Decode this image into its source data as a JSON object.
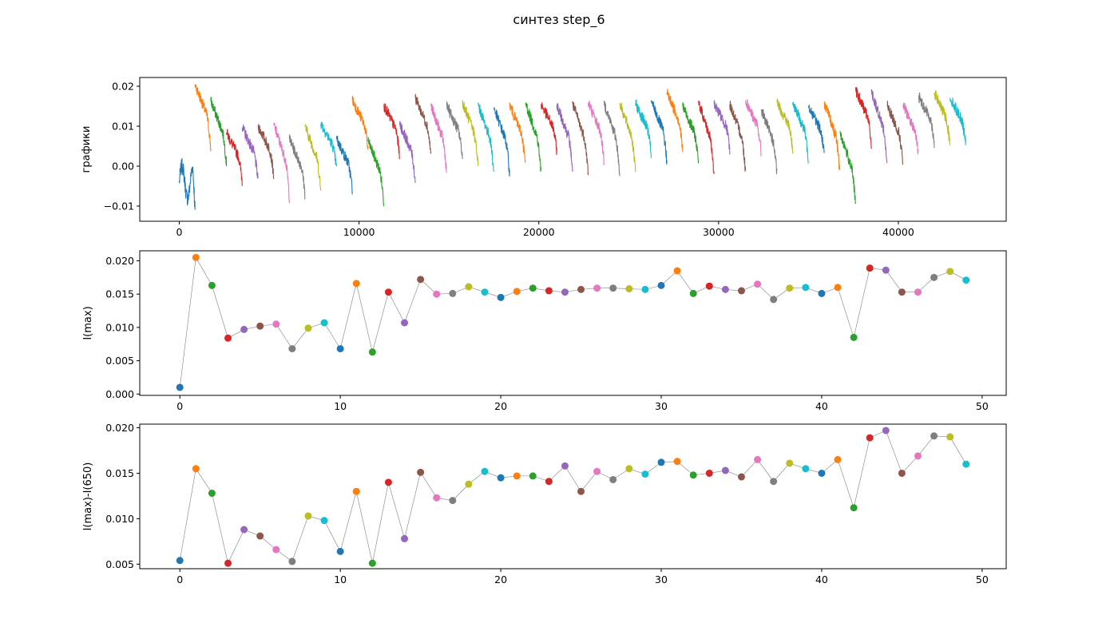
{
  "figure": {
    "title": "синтез step_6"
  },
  "palette": [
    "#1f77b4",
    "#ff7f0e",
    "#2ca02c",
    "#d62728",
    "#9467bd",
    "#8c564b",
    "#e377c2",
    "#7f7f7f",
    "#bcbd22",
    "#17becf"
  ],
  "chart_data": [
    {
      "type": "line",
      "ylabel": "графики",
      "xlabel": "",
      "xlim": [
        -2200,
        46000
      ],
      "ylim": [
        -0.0138,
        0.0222
      ],
      "xticks": [
        0,
        10000,
        20000,
        30000,
        40000
      ],
      "xtick_labels": [
        "0",
        "10000",
        "20000",
        "30000",
        "40000"
      ],
      "yticks": [
        -0.01,
        0.0,
        0.01,
        0.02
      ],
      "ytick_labels": [
        "−0.01",
        "0.00",
        "0.01",
        "0.02"
      ],
      "grid": false,
      "segment_length": 875,
      "segment_count": 50,
      "note": "50 consecutive noisy decaying traces, one per colour in the palette cycle; peaks match the I(max) panel"
    },
    {
      "type": "scatter",
      "ylabel": "I(max)",
      "xlabel": "",
      "xlim": [
        -2.5,
        51.5
      ],
      "ylim": [
        -0.0002,
        0.0215
      ],
      "xticks": [
        0,
        10,
        20,
        30,
        40,
        50
      ],
      "xtick_labels": [
        "0",
        "10",
        "20",
        "30",
        "40",
        "50"
      ],
      "yticks": [
        0.0,
        0.005,
        0.01,
        0.015,
        0.02
      ],
      "ytick_labels": [
        "0.000",
        "0.005",
        "0.010",
        "0.015",
        "0.020"
      ],
      "grid": false,
      "connect_line": true,
      "x": [
        0,
        1,
        2,
        3,
        4,
        5,
        6,
        7,
        8,
        9,
        10,
        11,
        12,
        13,
        14,
        15,
        16,
        17,
        18,
        19,
        20,
        21,
        22,
        23,
        24,
        25,
        26,
        27,
        28,
        29,
        30,
        31,
        32,
        33,
        34,
        35,
        36,
        37,
        38,
        39,
        40,
        41,
        42,
        43,
        44,
        45,
        46,
        47,
        48,
        49
      ],
      "values": [
        0.001,
        0.0205,
        0.0163,
        0.0084,
        0.0097,
        0.0102,
        0.0105,
        0.0068,
        0.0099,
        0.0107,
        0.0068,
        0.0166,
        0.0063,
        0.0153,
        0.0107,
        0.0172,
        0.015,
        0.0151,
        0.0161,
        0.0153,
        0.0145,
        0.0154,
        0.0159,
        0.0155,
        0.0153,
        0.0157,
        0.0159,
        0.0159,
        0.0158,
        0.0157,
        0.0163,
        0.0185,
        0.0151,
        0.0162,
        0.0157,
        0.0155,
        0.0165,
        0.0142,
        0.0159,
        0.016,
        0.0151,
        0.016,
        0.0085,
        0.0189,
        0.0186,
        0.0153,
        0.0153,
        0.0175,
        0.0184,
        0.0171
      ]
    },
    {
      "type": "scatter",
      "ylabel": "I(max)-I(650)",
      "xlabel": "",
      "xlim": [
        -2.5,
        51.5
      ],
      "ylim": [
        0.0045,
        0.0204
      ],
      "xticks": [
        0,
        10,
        20,
        30,
        40,
        50
      ],
      "xtick_labels": [
        "0",
        "10",
        "20",
        "30",
        "40",
        "50"
      ],
      "yticks": [
        0.005,
        0.01,
        0.015,
        0.02
      ],
      "ytick_labels": [
        "0.005",
        "0.010",
        "0.015",
        "0.020"
      ],
      "grid": false,
      "connect_line": true,
      "x": [
        0,
        1,
        2,
        3,
        4,
        5,
        6,
        7,
        8,
        9,
        10,
        11,
        12,
        13,
        14,
        15,
        16,
        17,
        18,
        19,
        20,
        21,
        22,
        23,
        24,
        25,
        26,
        27,
        28,
        29,
        30,
        31,
        32,
        33,
        34,
        35,
        36,
        37,
        38,
        39,
        40,
        41,
        42,
        43,
        44,
        45,
        46,
        47,
        48,
        49
      ],
      "values": [
        0.0054,
        0.0155,
        0.0128,
        0.0051,
        0.0088,
        0.0081,
        0.0066,
        0.0053,
        0.0103,
        0.0098,
        0.0064,
        0.013,
        0.0051,
        0.014,
        0.0078,
        0.0151,
        0.0123,
        0.012,
        0.0138,
        0.0152,
        0.0145,
        0.0147,
        0.0147,
        0.0141,
        0.0158,
        0.013,
        0.0152,
        0.0143,
        0.0155,
        0.0149,
        0.0162,
        0.0163,
        0.0148,
        0.015,
        0.0153,
        0.0146,
        0.0165,
        0.0141,
        0.0161,
        0.0155,
        0.015,
        0.0165,
        0.0112,
        0.0189,
        0.0197,
        0.015,
        0.0169,
        0.0191,
        0.019,
        0.016
      ]
    }
  ]
}
